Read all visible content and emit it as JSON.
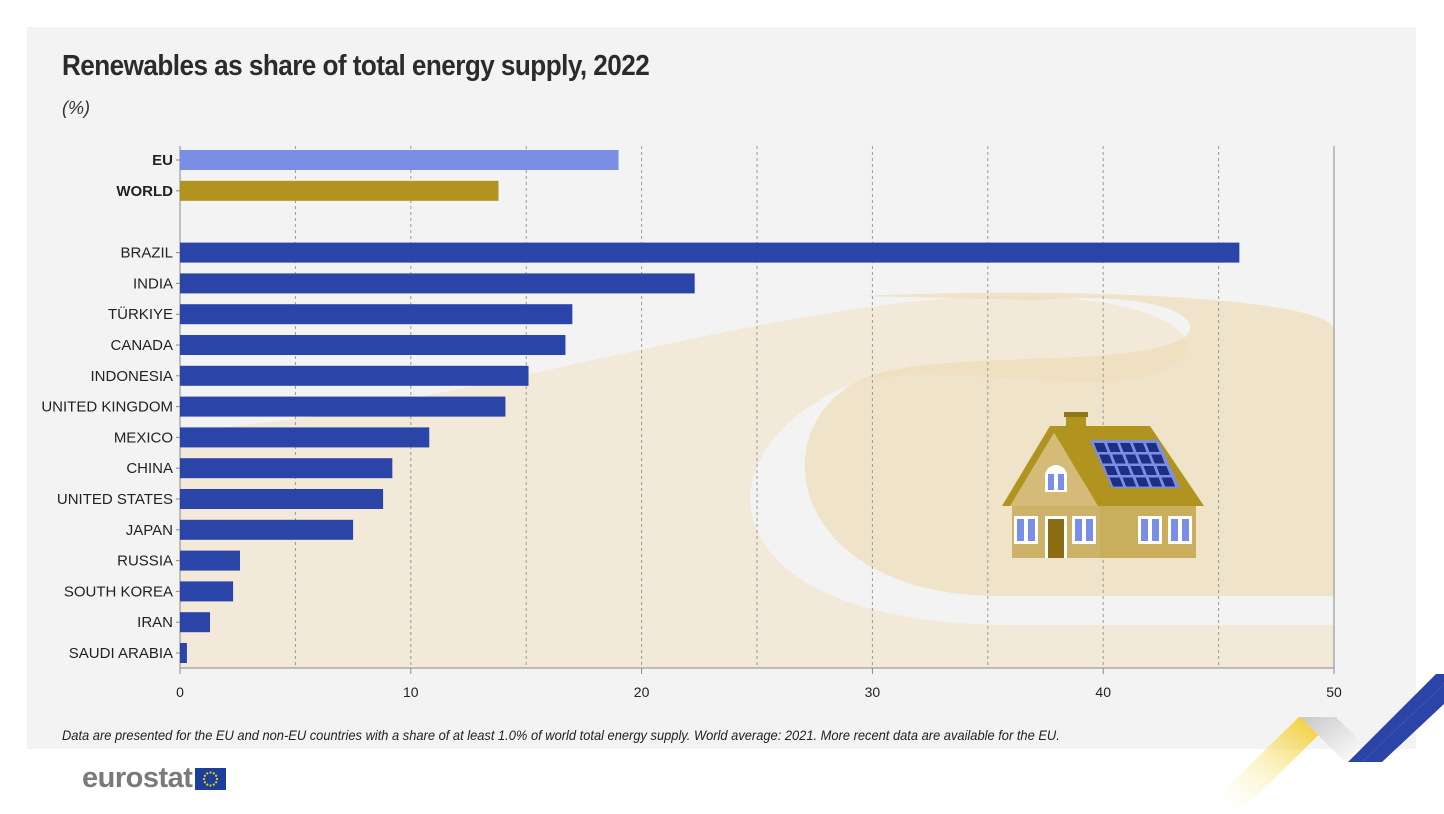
{
  "header": {
    "title": "Renewables as share of total energy supply, 2022",
    "unit": "(%)"
  },
  "footer": {
    "note": "Data are presented for the EU and non-EU countries with a share of at least 1.0% of world total energy supply. World average: 2021. More recent data are available for the EU.",
    "logo_text": "eurostat"
  },
  "colors": {
    "eu": "#7a8ee6",
    "world": "#b0941f",
    "country": "#2a44a8",
    "background": "#f3f3f3"
  },
  "chart_data": {
    "type": "bar",
    "orientation": "horizontal",
    "title": "Renewables as share of total energy supply, 2022",
    "xlabel": "",
    "ylabel": "",
    "xlim": [
      0,
      50
    ],
    "xticks": [
      0,
      10,
      20,
      30,
      40,
      50
    ],
    "grid": "vertical dashed",
    "groups": [
      {
        "name": "aggregates",
        "categories": [
          "EU",
          "WORLD"
        ],
        "values": [
          19.0,
          13.8
        ]
      },
      {
        "name": "countries",
        "categories": [
          "BRAZIL",
          "INDIA",
          "TÜRKIYE",
          "CANADA",
          "INDONESIA",
          "UNITED KINGDOM",
          "MEXICO",
          "CHINA",
          "UNITED STATES",
          "JAPAN",
          "RUSSIA",
          "SOUTH KOREA",
          "IRAN",
          "SAUDI ARABIA"
        ],
        "values": [
          45.9,
          22.3,
          17.0,
          16.7,
          15.1,
          14.1,
          10.8,
          9.2,
          8.8,
          7.5,
          2.6,
          2.3,
          1.3,
          0.3
        ]
      }
    ]
  }
}
